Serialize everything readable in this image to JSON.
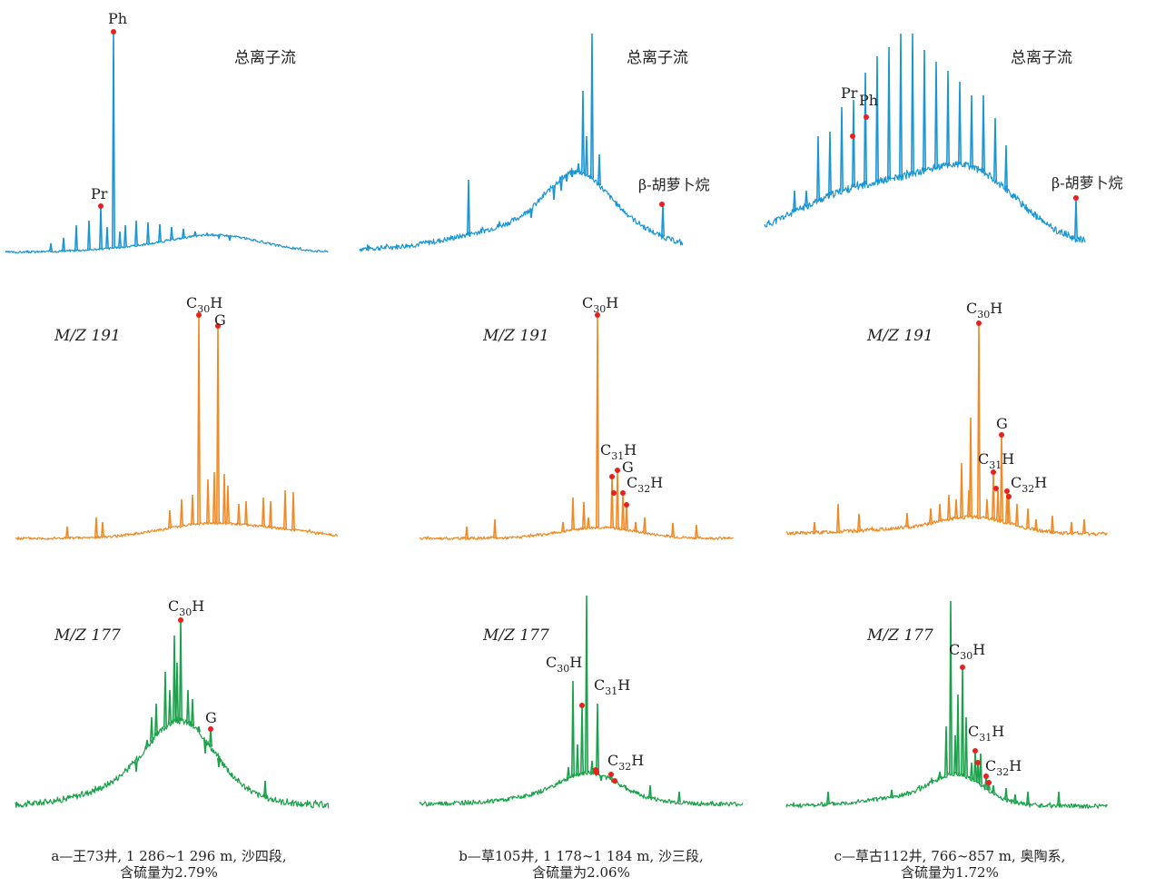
{
  "colors": {
    "tic": "#1a96d4",
    "m191": "#f08a24",
    "m177": "#1aa24a",
    "marker": "#e8211d"
  },
  "row_labels": {
    "tic": "总离子流",
    "m191": "M/Z 191",
    "m177": "M/Z 177"
  },
  "captions": [
    {
      "line1": "a—王73井, 1 286~1 296 m, 沙四段,",
      "line2": "含硫量为2.79%"
    },
    {
      "line1": "b—草105井, 1 178~1 184 m, 沙三段,",
      "line2": "含硫量为2.06%"
    },
    {
      "line1": "c—草古112井, 766~857 m, 奥陶系,",
      "line2": "含硫量为1.72%"
    }
  ],
  "chart_data": [
    {
      "type": "line",
      "sample": "a",
      "trace": "tic",
      "peaks": [
        {
          "label": "Pr",
          "rel": 0.18
        },
        {
          "label": "Ph",
          "rel": 1.0
        }
      ]
    },
    {
      "type": "line",
      "sample": "b",
      "trace": "tic",
      "peaks": [
        {
          "label": "β-胡萝卜烷",
          "rel": 0.12
        }
      ]
    },
    {
      "type": "line",
      "sample": "c",
      "trace": "tic",
      "peaks": [
        {
          "label": "Pr",
          "rel": 0.5
        },
        {
          "label": "Ph",
          "rel": 0.58
        },
        {
          "label": "β-胡萝卜烷",
          "rel": 0.2
        }
      ]
    },
    {
      "type": "line",
      "sample": "a",
      "trace": "m191",
      "peaks": [
        {
          "label": "C30H",
          "rel": 1.0
        },
        {
          "label": "G",
          "rel": 0.95
        }
      ]
    },
    {
      "type": "line",
      "sample": "b",
      "trace": "m191",
      "peaks": [
        {
          "label": "C30H",
          "rel": 1.0
        },
        {
          "label": "C31H",
          "rel": 0.26
        },
        {
          "label": "G",
          "rel": 0.28
        },
        {
          "label": "C32H",
          "rel": 0.18
        }
      ]
    },
    {
      "type": "line",
      "sample": "c",
      "trace": "m191",
      "peaks": [
        {
          "label": "C30H",
          "rel": 1.0
        },
        {
          "label": "G",
          "rel": 0.45
        },
        {
          "label": "C31H",
          "rel": 0.29
        },
        {
          "label": "C32H",
          "rel": 0.19
        }
      ]
    },
    {
      "type": "line",
      "sample": "a",
      "trace": "m177",
      "peaks": [
        {
          "label": "C30H",
          "rel": 1.0
        },
        {
          "label": "G",
          "rel": 0.4
        }
      ]
    },
    {
      "type": "line",
      "sample": "b",
      "trace": "m177",
      "peaks": [
        {
          "label": "C30H",
          "rel": 0.45
        },
        {
          "label": "C31H",
          "rel": 0.41
        },
        {
          "label": "C32H",
          "rel": 0.15
        }
      ]
    },
    {
      "type": "line",
      "sample": "c",
      "trace": "m177",
      "peaks": [
        {
          "label": "C30H",
          "rel": 0.65
        },
        {
          "label": "C31H",
          "rel": 0.25
        },
        {
          "label": "C32H",
          "rel": 0.15
        }
      ]
    }
  ]
}
